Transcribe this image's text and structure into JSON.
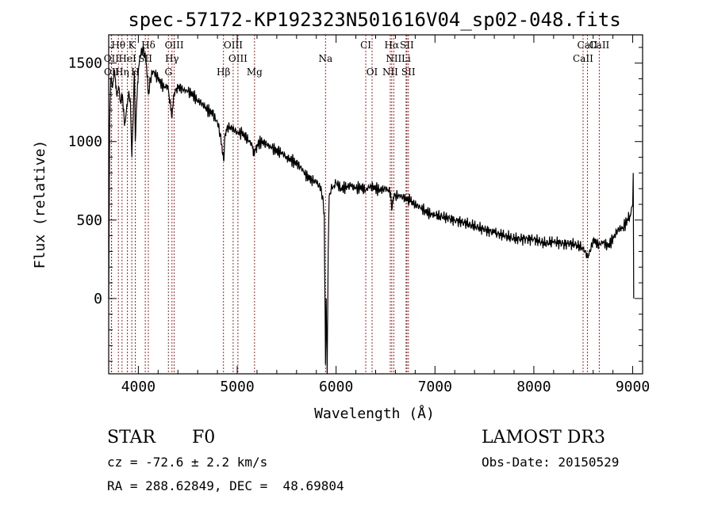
{
  "chart_data": {
    "type": "line",
    "title": "spec-57172-KP192323N501616V04_sp02-048.fits",
    "xlabel": "Wavelength (Å)",
    "ylabel": "Flux (relative)",
    "xlim": [
      3700,
      9100
    ],
    "ylim": [
      -480,
      1680
    ],
    "xticks": [
      4000,
      5000,
      6000,
      7000,
      8000,
      9000
    ],
    "yticks": [
      0,
      500,
      1000,
      1500
    ],
    "series": [
      {
        "name": "spectrum",
        "x": [
          3700,
          3710,
          3720,
          3740,
          3760,
          3780,
          3800,
          3820,
          3840,
          3860,
          3880,
          3900,
          3920,
          3934,
          3945,
          3960,
          3969,
          3980,
          4000,
          4020,
          4050,
          4080,
          4101,
          4120,
          4150,
          4200,
          4250,
          4300,
          4340,
          4360,
          4400,
          4450,
          4500,
          4550,
          4600,
          4650,
          4700,
          4750,
          4800,
          4830,
          4861,
          4880,
          4900,
          4950,
          5000,
          5050,
          5100,
          5150,
          5175,
          5200,
          5250,
          5300,
          5350,
          5400,
          5450,
          5500,
          5550,
          5600,
          5650,
          5700,
          5750,
          5800,
          5850,
          5880,
          5893,
          5900,
          5910,
          5920,
          5930,
          5950,
          5980,
          6000,
          6050,
          6100,
          6150,
          6200,
          6250,
          6300,
          6350,
          6400,
          6450,
          6500,
          6550,
          6563,
          6580,
          6600,
          6650,
          6700,
          6750,
          6800,
          6850,
          6900,
          6950,
          7000,
          7100,
          7200,
          7300,
          7400,
          7500,
          7600,
          7700,
          7800,
          7900,
          8000,
          8100,
          8200,
          8300,
          8400,
          8500,
          8542,
          8570,
          8600,
          8650,
          8700,
          8750,
          8800,
          8850,
          8900,
          8950,
          8970,
          9000,
          9005,
          9010
        ],
        "y": [
          0,
          1100,
          1400,
          1350,
          1450,
          1300,
          1350,
          1250,
          1300,
          1100,
          1200,
          1300,
          1250,
          900,
          1100,
          1450,
          1000,
          1200,
          1450,
          1550,
          1600,
          1500,
          1300,
          1400,
          1450,
          1400,
          1350,
          1350,
          1150,
          1300,
          1350,
          1330,
          1320,
          1300,
          1260,
          1240,
          1200,
          1180,
          1120,
          1050,
          880,
          1050,
          1100,
          1080,
          1060,
          1050,
          1020,
          980,
          920,
          980,
          1000,
          980,
          960,
          940,
          930,
          900,
          880,
          860,
          830,
          780,
          760,
          740,
          700,
          550,
          -420,
          0,
          -480,
          300,
          650,
          700,
          720,
          740,
          700,
          710,
          720,
          700,
          710,
          690,
          720,
          700,
          690,
          700,
          680,
          560,
          650,
          660,
          650,
          640,
          620,
          600,
          580,
          560,
          540,
          530,
          520,
          500,
          480,
          460,
          440,
          420,
          400,
          380,
          380,
          380,
          350,
          360,
          350,
          350,
          320,
          270,
          300,
          380,
          340,
          360,
          330,
          380,
          440,
          450,
          500,
          520,
          600,
          800,
          0
        ]
      }
    ],
    "line_markers": [
      {
        "label": "Hθ",
        "x": 3798
      },
      {
        "label": "K",
        "x": 3934
      },
      {
        "label": "Hδ",
        "x": 4101
      },
      {
        "label": "OIII",
        "x": 4363
      },
      {
        "label": "OIII",
        "x": 4959
      },
      {
        "label": "CI",
        "x": 6300
      },
      {
        "label": "Hα",
        "x": 6563
      },
      {
        "label": "SII",
        "x": 6716
      },
      {
        "label": "CaII",
        "x": 8542
      },
      {
        "label": "OII",
        "x": 3727
      },
      {
        "label": "HeI",
        "x": 3889
      },
      {
        "label": "SII",
        "x": 4070
      },
      {
        "label": "Hγ",
        "x": 4340
      },
      {
        "label": "OIII",
        "x": 5007
      },
      {
        "label": "Na",
        "x": 5893
      },
      {
        "label": "NII",
        "x": 6583
      },
      {
        "label": "Li",
        "x": 6708
      },
      {
        "label": "CaII",
        "x": 8498
      },
      {
        "label": "OII",
        "x": 3729
      },
      {
        "label": "Hη",
        "x": 3835
      },
      {
        "label": "H",
        "x": 3969
      },
      {
        "label": "G",
        "x": 4304
      },
      {
        "label": "Hβ",
        "x": 4861
      },
      {
        "label": "Mg",
        "x": 5175
      },
      {
        "label": "OI",
        "x": 6364
      },
      {
        "label": "NII",
        "x": 6548
      },
      {
        "label": "SII",
        "x": 6731
      },
      {
        "label": "CaII",
        "x": 8662
      }
    ]
  },
  "info": {
    "class_label": "STAR",
    "subclass": "F0",
    "survey": "LAMOST DR3",
    "cz": "cz = -72.6 ± 2.2 km/s",
    "obs_date": "Obs-Date: 20150529",
    "coords": "RA = 288.62849, DEC =  48.69804"
  },
  "colors": {
    "axis": "#000000",
    "spectrum": "#000000",
    "marker": "#b22222"
  }
}
